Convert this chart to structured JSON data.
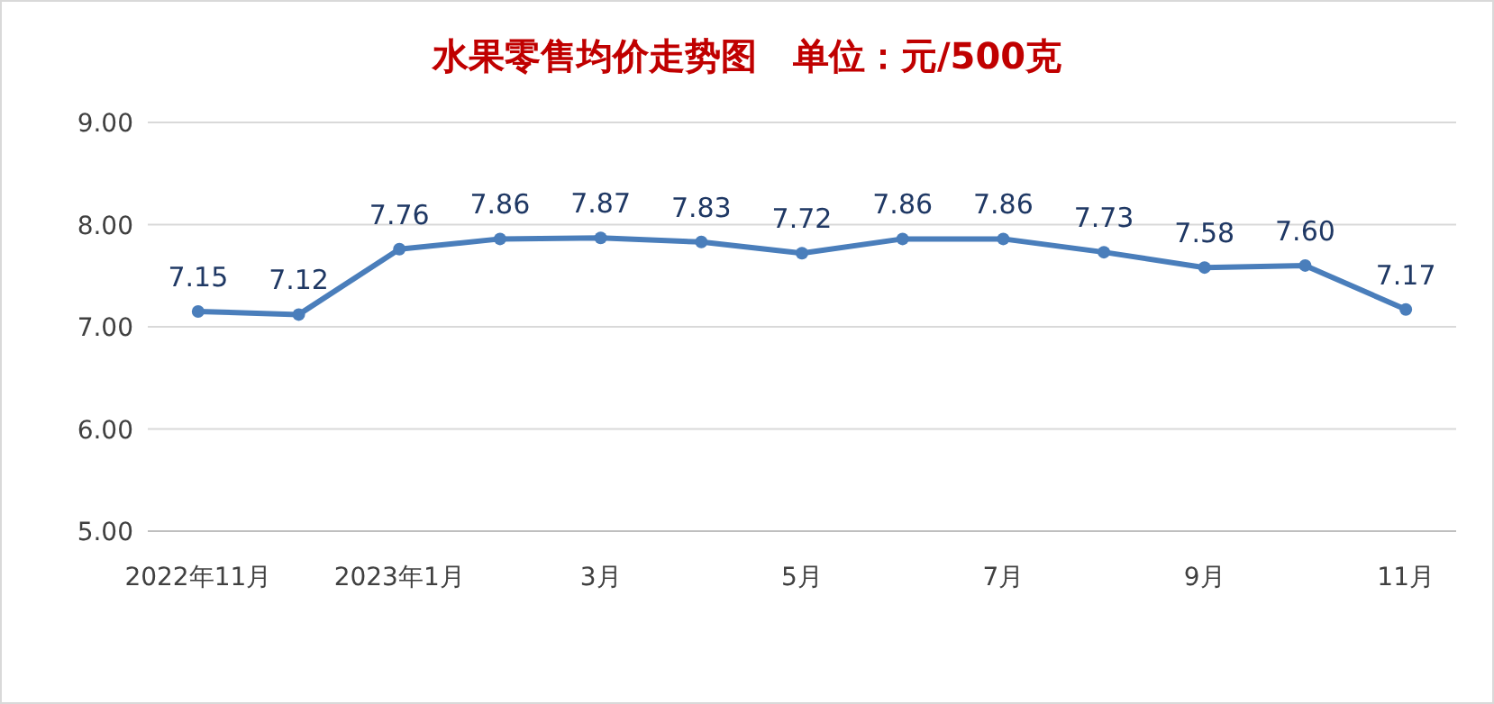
{
  "chart_data": {
    "type": "line",
    "title": "水果零售均价走势图　单位：元/500克",
    "categories": [
      "2022年11月",
      null,
      "2023年1月",
      null,
      "3月",
      null,
      "5月",
      null,
      "7月",
      null,
      "9月",
      null,
      "11月"
    ],
    "series": [
      {
        "color": "#4a7ebb",
        "values": [
          7.15,
          7.12,
          7.76,
          7.86,
          7.87,
          7.83,
          7.72,
          7.86,
          7.86,
          7.73,
          7.58,
          7.6,
          7.17
        ],
        "value_labels": [
          "7.15",
          "7.12",
          "7.76",
          "7.86",
          "7.87",
          "7.83",
          "7.72",
          "7.86",
          "7.86",
          "7.73",
          "7.58",
          "7.60",
          "7.17"
        ]
      }
    ],
    "ylim": [
      5,
      9
    ],
    "yticks": [
      {
        "value": 5,
        "label": "5.00"
      },
      {
        "value": 6,
        "label": "6.00"
      },
      {
        "value": 7,
        "label": "7.00"
      },
      {
        "value": 8,
        "label": "8.00"
      },
      {
        "value": 9,
        "label": "9.00"
      }
    ],
    "grid": "y",
    "marker": "circle",
    "line_style": "solid"
  }
}
